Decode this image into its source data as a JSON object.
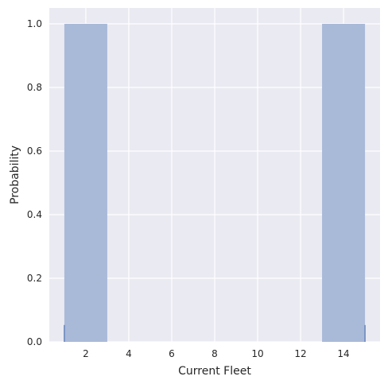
{
  "chart_data": {
    "type": "bar",
    "xlabel": "Current Fleet",
    "ylabel": "Probability",
    "xlim": [
      0.3,
      15.7
    ],
    "ylim": [
      0,
      1.05
    ],
    "grid": true,
    "x_ticks": [
      2,
      4,
      6,
      8,
      10,
      12,
      14
    ],
    "x_tick_labels": [
      "2",
      "4",
      "6",
      "8",
      "10",
      "12",
      "14"
    ],
    "y_ticks": [
      0.0,
      0.2,
      0.4,
      0.6,
      0.8,
      1.0
    ],
    "y_tick_labels": [
      "0.0",
      "0.2",
      "0.4",
      "0.6",
      "0.8",
      "1.0"
    ],
    "bins": [
      {
        "x0": 1,
        "x1": 3,
        "value": 1.0
      },
      {
        "x0": 13,
        "x1": 15,
        "value": 1.0
      }
    ],
    "rug": [
      1,
      15
    ],
    "rug_height": 0.053,
    "colors": {
      "plot_background": "#eaeaf2",
      "grid": "#ffffff",
      "bar": "#a9b9d8",
      "rug": "#4c72b0"
    }
  }
}
